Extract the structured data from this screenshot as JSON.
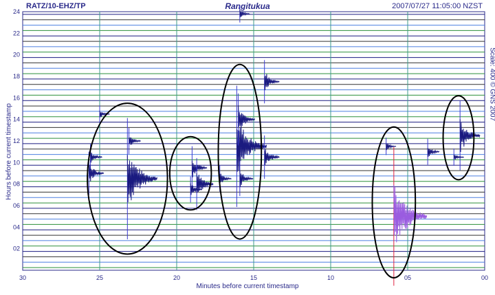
{
  "header": {
    "station": "RATZ/10-EHZ/TP",
    "title": "Rangitukua",
    "timestamp": "2007/07/27 11:05:00 NZST"
  },
  "side_note": "Scale: 400 © GNS 2007",
  "chart_data": {
    "type": "heatmap",
    "subtype": "helicorder",
    "xlabel": "Minutes before current timestamp",
    "ylabel": "Hours before current timestamp",
    "xlim": [
      30,
      0
    ],
    "ylim": [
      0,
      24
    ],
    "x_ticks": [
      "30",
      "25",
      "20",
      "15",
      "10",
      "05",
      "00"
    ],
    "y_ticks": [
      "02",
      "04",
      "06",
      "08",
      "10",
      "12",
      "14",
      "16",
      "18",
      "20",
      "22",
      "24"
    ],
    "trace_count": 48,
    "trace_colors": [
      "#1a1a80",
      "#333333",
      "#4b7fe0",
      "#2b8f3a"
    ],
    "events": [
      {
        "minute": 23.2,
        "hour": 8.5,
        "amp": 1.4,
        "color": "#1a1a80"
      },
      {
        "minute": 23.1,
        "hour": 12.0,
        "amp": 0.3,
        "color": "#1a1a80"
      },
      {
        "minute": 25.6,
        "hour": 10.5,
        "amp": 0.3,
        "color": "#1a1a80"
      },
      {
        "minute": 25.7,
        "hour": 9.0,
        "amp": 0.5,
        "color": "#1a1a80"
      },
      {
        "minute": 19.0,
        "hour": 9.5,
        "amp": 0.5,
        "color": "#1a1a80"
      },
      {
        "minute": 18.7,
        "hour": 8.0,
        "amp": 0.6,
        "color": "#1a1a80"
      },
      {
        "minute": 19.1,
        "hour": 7.5,
        "amp": 0.3,
        "color": "#1a1a80"
      },
      {
        "minute": 16.1,
        "hour": 11.5,
        "amp": 1.4,
        "color": "#1a1a80"
      },
      {
        "minute": 16.0,
        "hour": 14.0,
        "amp": 0.6,
        "color": "#1a1a80"
      },
      {
        "minute": 15.9,
        "hour": 8.5,
        "amp": 0.4,
        "color": "#1a1a80"
      },
      {
        "minute": 14.3,
        "hour": 10.5,
        "amp": 0.5,
        "color": "#1a1a80"
      },
      {
        "minute": 14.3,
        "hour": 17.5,
        "amp": 0.5,
        "color": "#1a1a80"
      },
      {
        "minute": 17.2,
        "hour": 8.5,
        "amp": 0.3,
        "color": "#1a1a80"
      },
      {
        "minute": 5.9,
        "hour": 5.0,
        "amp": 1.6,
        "color": "#9a5ce0"
      },
      {
        "minute": 1.6,
        "hour": 12.5,
        "amp": 0.8,
        "color": "#1a1a80"
      },
      {
        "minute": 3.7,
        "hour": 11.0,
        "amp": 0.3,
        "color": "#1a1a80"
      },
      {
        "minute": 6.4,
        "hour": 11.5,
        "amp": 0.2,
        "color": "#1a1a80"
      },
      {
        "minute": 2.0,
        "hour": 10.5,
        "amp": 0.2,
        "color": "#1a1a80"
      },
      {
        "minute": 25.0,
        "hour": 14.5,
        "amp": 0.2,
        "color": "#1a1a80"
      },
      {
        "minute": 15.9,
        "hour": 23.8,
        "amp": 0.2,
        "color": "#1a1a80"
      }
    ],
    "annotations": [
      {
        "type": "ellipse",
        "minute": 23.2,
        "hour": 8.5,
        "rx_min": 2.6,
        "ry_hr": 7.0
      },
      {
        "type": "ellipse",
        "minute": 19.1,
        "hour": 9.0,
        "rx_min": 1.35,
        "ry_hr": 3.4
      },
      {
        "type": "ellipse",
        "minute": 15.9,
        "hour": 11.0,
        "rx_min": 1.4,
        "ry_hr": 8.1
      },
      {
        "type": "ellipse",
        "minute": 5.9,
        "hour": 6.3,
        "rx_min": 1.4,
        "ry_hr": 7.0
      },
      {
        "type": "ellipse",
        "minute": 1.7,
        "hour": 12.3,
        "rx_min": 1.0,
        "ry_hr": 3.9
      }
    ]
  }
}
